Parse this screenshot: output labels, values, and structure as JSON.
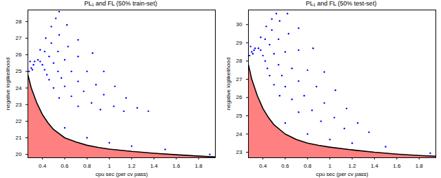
{
  "chart_data": [
    {
      "type": "scatter",
      "title": "PL₁ and FL (50% train-set)",
      "x_label": "cpu sec (per cv pass)",
      "y_label": "negative loglikelihood",
      "xlim": [
        0.27,
        1.95
      ],
      "ylim": [
        19.8,
        28.7
      ],
      "xticks": [
        0.4,
        0.6,
        0.8,
        1,
        1.2,
        1.4,
        1.6,
        1.8
      ],
      "yticks": [
        20,
        21,
        22,
        23,
        24,
        25,
        26,
        27,
        28
      ],
      "series": [
        {
          "type": "area",
          "color": "#ff8080",
          "x": [
            0.27,
            0.3,
            0.35,
            0.4,
            0.45,
            0.5,
            0.6,
            0.7,
            0.8,
            0.9,
            1.0,
            1.2,
            1.4,
            1.6,
            1.8,
            1.95
          ],
          "y": [
            24.8,
            24.0,
            23.1,
            22.4,
            21.9,
            21.5,
            21.0,
            20.75,
            20.55,
            20.42,
            20.32,
            20.18,
            20.07,
            19.98,
            19.9,
            19.85
          ]
        },
        {
          "type": "scatter",
          "color": "#0000ff",
          "marker": "dot",
          "x": [
            0.28,
            0.3,
            0.32,
            0.29,
            0.31,
            0.33,
            0.38,
            0.43,
            0.48,
            0.52,
            0.55,
            0.36,
            0.42,
            0.48,
            0.55,
            0.62,
            0.38,
            0.46,
            0.54,
            0.63,
            0.72,
            0.4,
            0.5,
            0.6,
            0.72,
            0.85,
            0.42,
            0.54,
            0.66,
            0.8,
            0.95,
            0.44,
            0.57,
            0.72,
            0.88,
            1.05,
            0.46,
            0.6,
            0.77,
            0.95,
            1.15,
            0.5,
            0.66,
            0.84,
            1.04,
            1.25,
            0.55,
            0.72,
            0.92,
            1.13,
            1.35,
            0.6,
            0.8,
            1.0,
            1.2,
            1.5,
            1.9
          ],
          "y": [
            25.0,
            25.2,
            25.4,
            25.6,
            25.1,
            25.6,
            26.3,
            27.0,
            27.7,
            28.2,
            28.6,
            25.7,
            26.2,
            26.7,
            27.2,
            27.8,
            25.6,
            25.9,
            26.2,
            26.5,
            26.9,
            25.4,
            25.5,
            25.7,
            25.9,
            26.1,
            25.1,
            25.0,
            25.0,
            25.0,
            25.0,
            24.8,
            24.6,
            24.4,
            24.2,
            24.1,
            24.5,
            24.1,
            23.8,
            23.6,
            23.4,
            24.0,
            23.5,
            23.1,
            22.9,
            22.8,
            23.4,
            22.9,
            22.7,
            22.6,
            22.6,
            21.6,
            21.0,
            20.7,
            20.5,
            20.3,
            20.0
          ]
        }
      ]
    },
    {
      "type": "scatter",
      "title": "PL₁ and FL (50% test-set)",
      "x_label": "cpu sec (per cv pass)",
      "y_label": "negative loglikelihood",
      "xlim": [
        0.27,
        1.95
      ],
      "ylim": [
        22.7,
        30.8
      ],
      "xticks": [
        0.4,
        0.6,
        0.8,
        1,
        1.2,
        1.4,
        1.6,
        1.8
      ],
      "yticks": [
        23,
        24,
        25,
        26,
        27,
        28,
        29,
        30
      ],
      "series": [
        {
          "type": "area",
          "color": "#ff8080",
          "x": [
            0.27,
            0.3,
            0.35,
            0.4,
            0.45,
            0.5,
            0.6,
            0.7,
            0.8,
            0.9,
            1.0,
            1.2,
            1.4,
            1.6,
            1.8,
            1.95
          ],
          "y": [
            27.8,
            27.0,
            26.1,
            25.4,
            24.9,
            24.5,
            24.0,
            23.7,
            23.5,
            23.38,
            23.28,
            23.13,
            23.0,
            22.9,
            22.82,
            22.78
          ]
        },
        {
          "type": "scatter",
          "color": "#0000ff",
          "marker": "dot",
          "x": [
            0.28,
            0.3,
            0.32,
            0.29,
            0.31,
            0.33,
            0.38,
            0.43,
            0.48,
            0.52,
            0.36,
            0.42,
            0.48,
            0.55,
            0.62,
            0.38,
            0.46,
            0.54,
            0.63,
            0.72,
            0.4,
            0.5,
            0.6,
            0.72,
            0.85,
            0.42,
            0.54,
            0.66,
            0.8,
            0.95,
            0.44,
            0.57,
            0.72,
            0.88,
            1.05,
            0.46,
            0.6,
            0.77,
            0.95,
            1.15,
            0.5,
            0.66,
            0.84,
            1.04,
            1.25,
            0.55,
            0.72,
            0.92,
            1.13,
            1.35,
            0.6,
            0.8,
            1.0,
            1.2,
            1.5,
            1.9
          ],
          "y": [
            28.3,
            28.5,
            28.6,
            28.8,
            28.4,
            28.7,
            29.3,
            29.9,
            30.3,
            30.6,
            28.7,
            29.2,
            29.7,
            30.2,
            30.6,
            28.6,
            28.9,
            29.2,
            29.5,
            29.8,
            28.3,
            28.4,
            28.5,
            28.6,
            28.7,
            28.0,
            27.8,
            27.6,
            27.5,
            27.4,
            27.6,
            27.2,
            26.9,
            26.6,
            26.4,
            27.2,
            26.6,
            26.1,
            25.7,
            25.4,
            26.7,
            25.9,
            25.3,
            24.9,
            24.6,
            26.1,
            25.2,
            24.7,
            24.3,
            24.1,
            24.6,
            24.0,
            23.7,
            23.5,
            23.3,
            22.95
          ]
        }
      ]
    }
  ]
}
